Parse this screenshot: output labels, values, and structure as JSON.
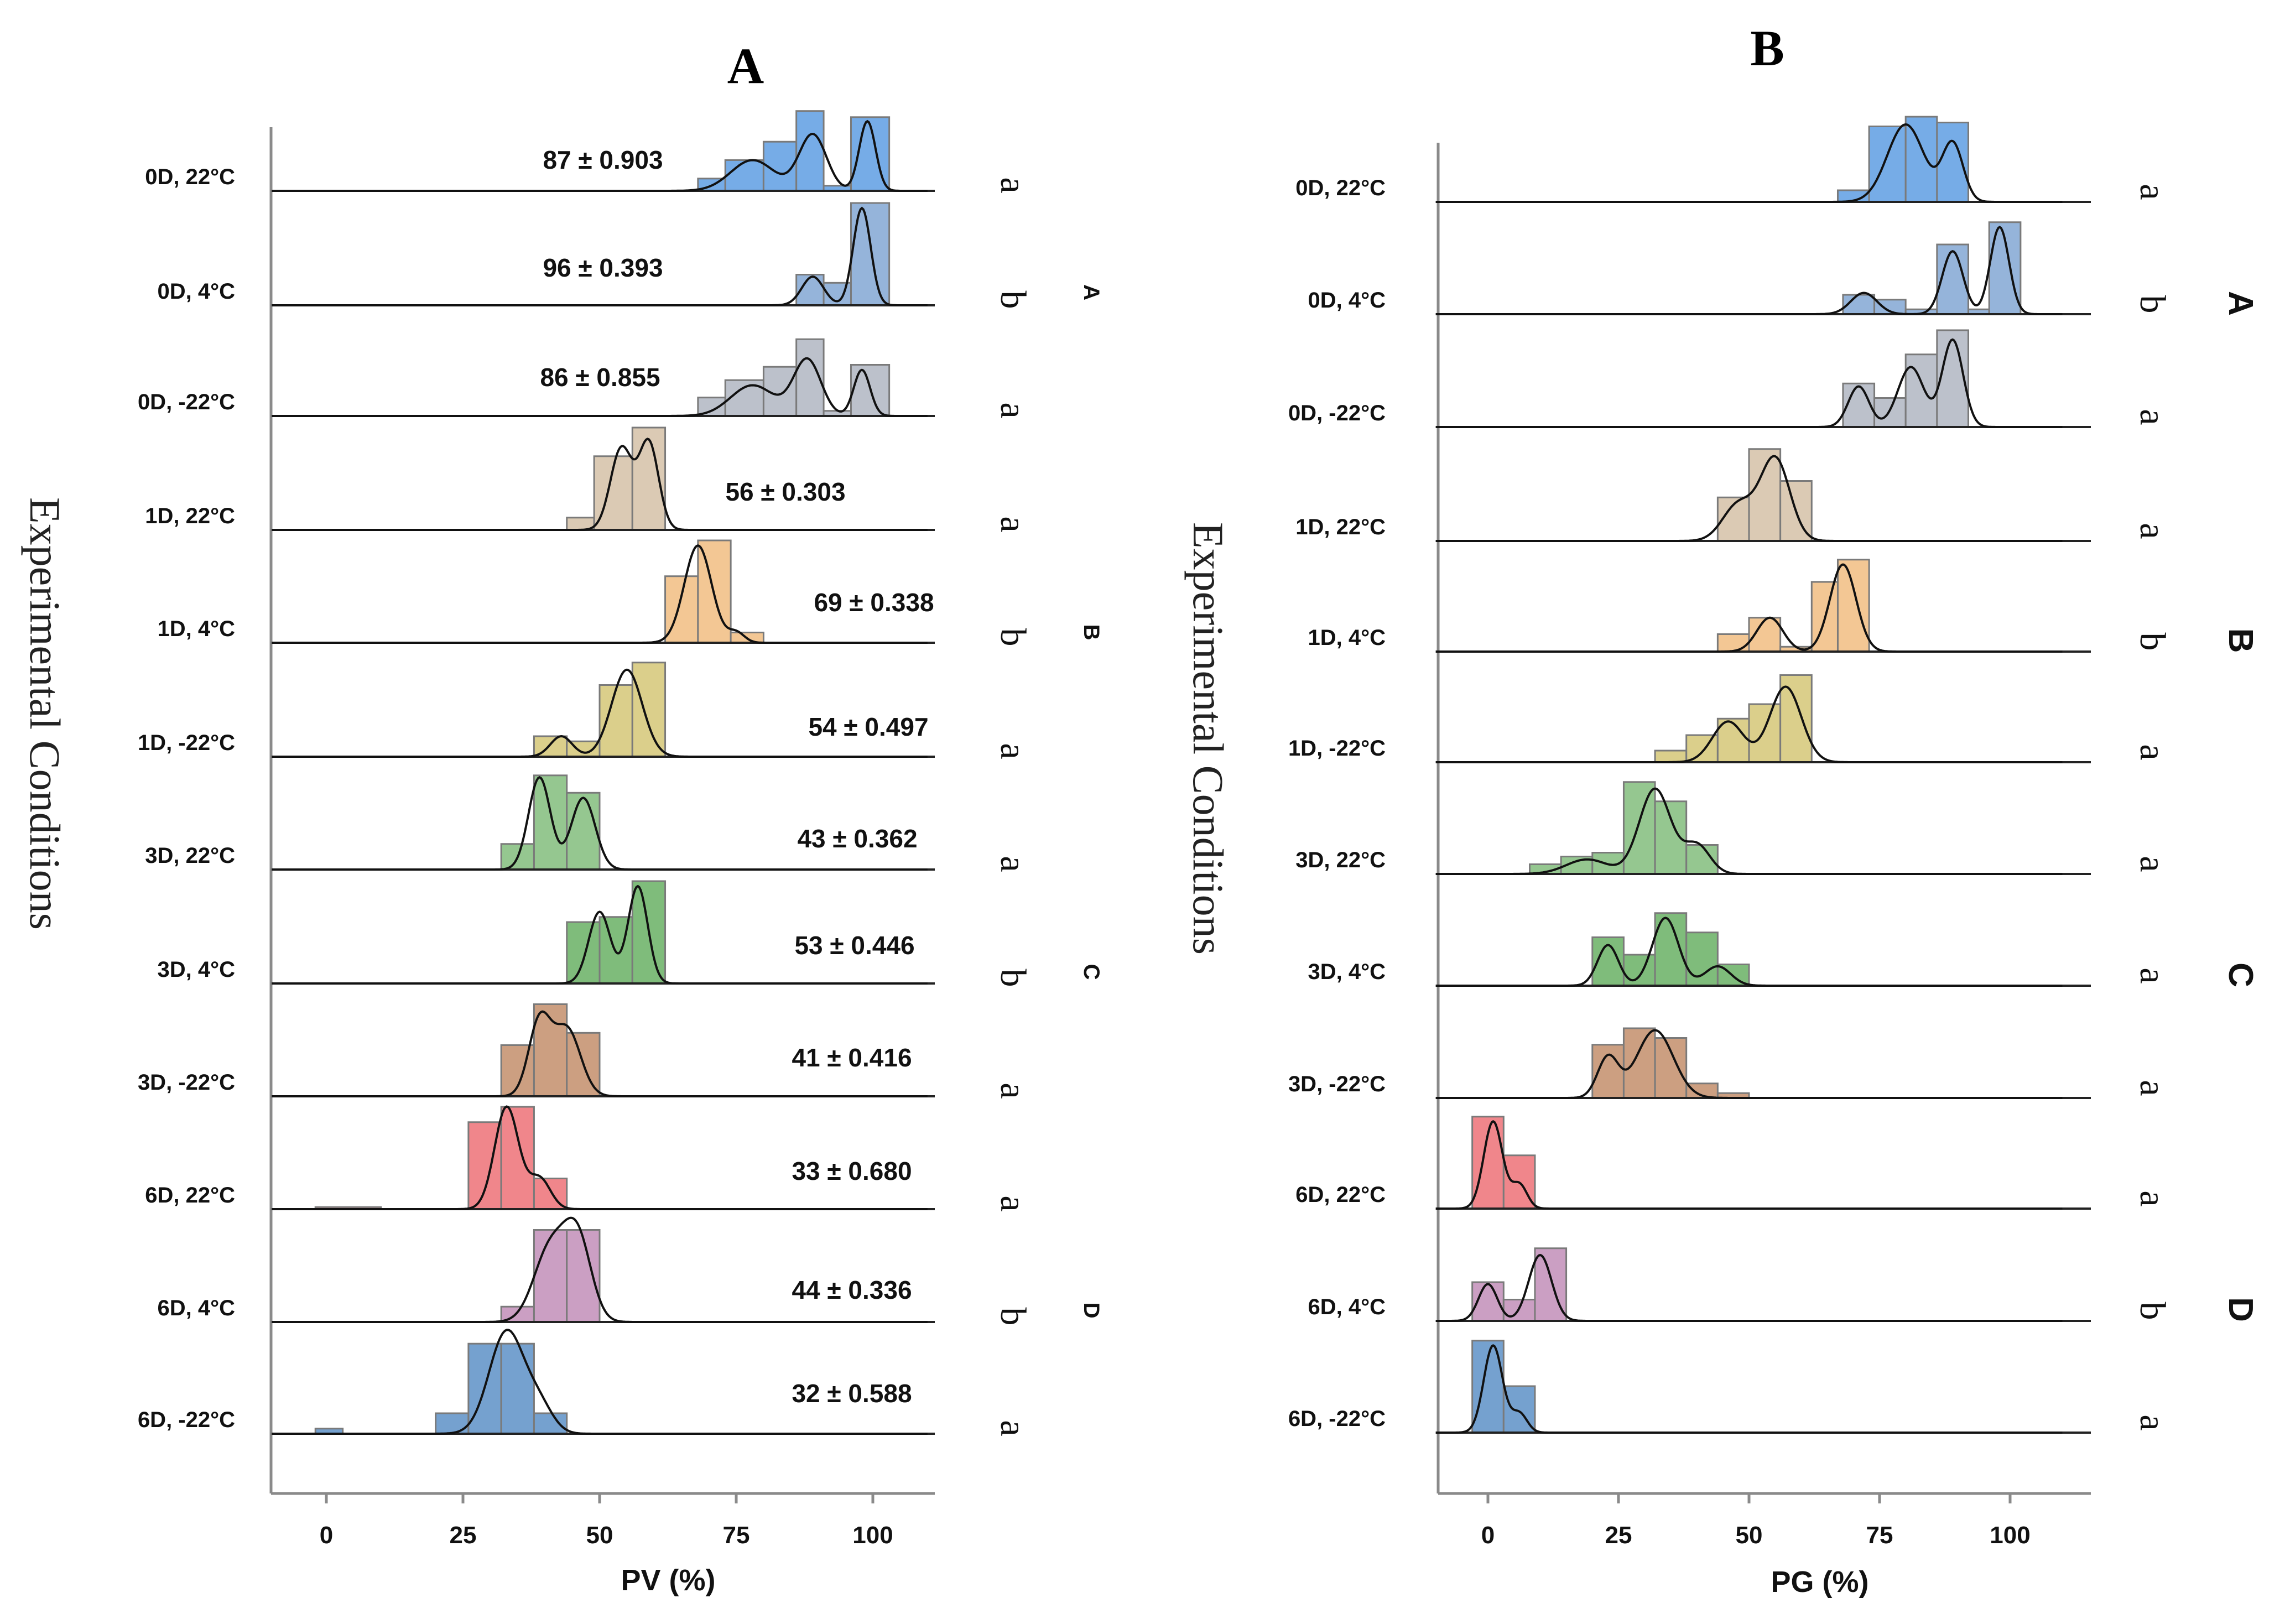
{
  "chart_data": [
    {
      "type": "histogram-ridgeline",
      "title": "A",
      "xlabel": "PV (%)",
      "ylabel": "Experimental Conditions",
      "xlim": [
        -10,
        110
      ],
      "xticks": [
        0,
        25,
        50,
        75,
        100
      ],
      "series": [
        {
          "name": "0D, 22°C",
          "color": "#6fa8e6",
          "stat": "87 ± 0.903",
          "letter": "a",
          "bins": [
            [
              68,
              73,
              0.12
            ],
            [
              73,
              80,
              0.3
            ],
            [
              80,
              86,
              0.48
            ],
            [
              86,
              91,
              0.78
            ],
            [
              91,
              96,
              0.05
            ],
            [
              96,
              103,
              0.72
            ]
          ],
          "peaks": [
            [
              78,
              0.3,
              4
            ],
            [
              89,
              0.55,
              2.5
            ],
            [
              99,
              0.68,
              1.5
            ]
          ]
        },
        {
          "name": "0D, 4°C",
          "color": "#8fb0d8",
          "stat": "96 ± 0.393",
          "letter": "b",
          "bins": [
            [
              86,
              91,
              0.3
            ],
            [
              91,
              96,
              0.22
            ],
            [
              96,
              103,
              1.0
            ]
          ],
          "peaks": [
            [
              89,
              0.28,
              2
            ],
            [
              98,
              0.95,
              1.6
            ]
          ]
        },
        {
          "name": "0D, -22°C",
          "color": "#b8bec8",
          "stat": "86 ± 0.855",
          "letter": "a",
          "bins": [
            [
              68,
              73,
              0.18
            ],
            [
              73,
              80,
              0.35
            ],
            [
              80,
              86,
              0.48
            ],
            [
              86,
              91,
              0.75
            ],
            [
              91,
              96,
              0.05
            ],
            [
              96,
              103,
              0.5
            ]
          ],
          "peaks": [
            [
              78,
              0.3,
              4
            ],
            [
              88,
              0.55,
              2.5
            ],
            [
              98,
              0.45,
              1.5
            ]
          ]
        },
        {
          "name": "1D, 22°C",
          "color": "#d9c7b0",
          "stat": "56 ± 0.303",
          "letter": "a",
          "bins": [
            [
              44,
              49,
              0.12
            ],
            [
              49,
              56,
              0.72
            ],
            [
              56,
              62,
              1.0
            ]
          ],
          "peaks": [
            [
              54,
              0.8,
              2
            ],
            [
              59,
              0.85,
              1.8
            ]
          ]
        },
        {
          "name": "1D, 4°C",
          "color": "#f2c48e",
          "stat": "69 ± 0.338",
          "letter": "b",
          "bins": [
            [
              62,
              68,
              0.65
            ],
            [
              68,
              74,
              1.0
            ],
            [
              74,
              80,
              0.1
            ]
          ],
          "peaks": [
            [
              68,
              0.95,
              2.5
            ],
            [
              75,
              0.1,
              1.5
            ]
          ]
        },
        {
          "name": "1D, -22°C",
          "color": "#d9cc85",
          "stat": "54 ± 0.497",
          "letter": "a",
          "bins": [
            [
              38,
              44,
              0.2
            ],
            [
              44,
              50,
              0.15
            ],
            [
              50,
              56,
              0.7
            ],
            [
              56,
              62,
              0.92
            ]
          ],
          "peaks": [
            [
              43,
              0.2,
              2
            ],
            [
              55,
              0.85,
              2.8
            ]
          ]
        },
        {
          "name": "3D, 22°C",
          "color": "#8fc48a",
          "stat": "43 ± 0.362",
          "letter": "a",
          "bins": [
            [
              32,
              38,
              0.25
            ],
            [
              38,
              44,
              0.92
            ],
            [
              44,
              50,
              0.75
            ]
          ],
          "peaks": [
            [
              39,
              0.9,
              2
            ],
            [
              47,
              0.7,
              2.2
            ]
          ]
        },
        {
          "name": "3D, 4°C",
          "color": "#78b874",
          "stat": "53 ± 0.446",
          "letter": "b",
          "bins": [
            [
              44,
              50,
              0.6
            ],
            [
              50,
              56,
              0.65
            ],
            [
              56,
              62,
              1.0
            ]
          ],
          "peaks": [
            [
              50,
              0.7,
              2
            ],
            [
              57,
              0.95,
              1.8
            ]
          ]
        },
        {
          "name": "3D, -22°C",
          "color": "#c99a7a",
          "stat": "41 ± 0.416",
          "letter": "a",
          "bins": [
            [
              32,
              38,
              0.5
            ],
            [
              38,
              44,
              0.9
            ],
            [
              44,
              50,
              0.62
            ]
          ],
          "peaks": [
            [
              39,
              0.72,
              2
            ],
            [
              44,
              0.66,
              2.5
            ]
          ]
        },
        {
          "name": "6D, 22°C",
          "color": "#ef7f85",
          "stat": "33 ± 0.680",
          "letter": "a",
          "bins": [
            [
              -2,
              10,
              0.02
            ],
            [
              26,
              32,
              0.85
            ],
            [
              32,
              38,
              1.0
            ],
            [
              38,
              44,
              0.3
            ]
          ],
          "peaks": [
            [
              33,
              1.0,
              2.2
            ],
            [
              39,
              0.3,
              2
            ]
          ]
        },
        {
          "name": "6D, 4°C",
          "color": "#c89ac0",
          "stat": "44 ± 0.336",
          "letter": "b",
          "bins": [
            [
              32,
              38,
              0.15
            ],
            [
              38,
              44,
              0.9
            ],
            [
              44,
              50,
              0.9
            ]
          ],
          "peaks": [
            [
              41,
              0.72,
              3
            ],
            [
              46,
              0.78,
              2.5
            ]
          ]
        },
        {
          "name": "6D, -22°C",
          "color": "#6e9ccc",
          "stat": "32 ± 0.588",
          "letter": "a",
          "bins": [
            [
              -2,
              3,
              0.05
            ],
            [
              20,
              26,
              0.2
            ],
            [
              26,
              32,
              0.88
            ],
            [
              32,
              38,
              0.88
            ],
            [
              38,
              44,
              0.2
            ]
          ],
          "peaks": [
            [
              33,
              1.0,
              3.2
            ],
            [
              39,
              0.25,
              2.5
            ]
          ]
        }
      ],
      "groups": [
        {
          "label": "A",
          "rows": [
            0,
            2
          ]
        },
        {
          "label": "B",
          "rows": [
            3,
            5
          ]
        },
        {
          "label": "C",
          "rows": [
            6,
            8
          ]
        },
        {
          "label": "D",
          "rows": [
            9,
            11
          ]
        }
      ]
    },
    {
      "type": "histogram-ridgeline",
      "title": "B",
      "xlabel": "PG (%)",
      "ylabel": "Experimental Conditions",
      "xlim": [
        -10,
        110
      ],
      "xticks": [
        0,
        25,
        50,
        75,
        100
      ],
      "series": [
        {
          "name": "0D, 22°C",
          "color": "#6fa8e6",
          "letter": "a",
          "bins": [
            [
              67,
              73,
              0.12
            ],
            [
              73,
              80,
              0.78
            ],
            [
              80,
              86,
              0.88
            ],
            [
              86,
              92,
              0.82
            ]
          ],
          "peaks": [
            [
              80,
              0.8,
              3.5
            ],
            [
              89,
              0.6,
              2
            ]
          ]
        },
        {
          "name": "0D, 4°C",
          "color": "#8fb0d8",
          "letter": "b",
          "bins": [
            [
              68,
              74,
              0.2
            ],
            [
              74,
              80,
              0.15
            ],
            [
              80,
              86,
              0.05
            ],
            [
              86,
              92,
              0.72
            ],
            [
              92,
              96,
              0.05
            ],
            [
              96,
              102,
              0.95
            ]
          ],
          "peaks": [
            [
              72,
              0.22,
              2.5
            ],
            [
              89,
              0.65,
              2
            ],
            [
              98,
              0.9,
              1.8
            ]
          ]
        },
        {
          "name": "0D, -22°C",
          "color": "#b8bec8",
          "letter": "a",
          "bins": [
            [
              68,
              74,
              0.45
            ],
            [
              74,
              80,
              0.3
            ],
            [
              80,
              86,
              0.75
            ],
            [
              86,
              92,
              1.0
            ]
          ],
          "peaks": [
            [
              71,
              0.42,
              2
            ],
            [
              81,
              0.62,
              2.5
            ],
            [
              89,
              0.9,
              2
            ]
          ]
        },
        {
          "name": "1D, 22°C",
          "color": "#d9c7b0",
          "letter": "a",
          "bins": [
            [
              44,
              50,
              0.45
            ],
            [
              50,
              56,
              0.95
            ],
            [
              56,
              62,
              0.62
            ]
          ],
          "peaks": [
            [
              48,
              0.38,
              3
            ],
            [
              55,
              0.85,
              2.8
            ]
          ]
        },
        {
          "name": "1D, 4°C",
          "color": "#f2c48e",
          "letter": "b",
          "bins": [
            [
              44,
              50,
              0.18
            ],
            [
              50,
              56,
              0.35
            ],
            [
              56,
              62,
              0.05
            ],
            [
              62,
              67,
              0.72
            ],
            [
              67,
              73,
              0.95
            ]
          ],
          "peaks": [
            [
              54,
              0.35,
              2.5
            ],
            [
              68,
              0.9,
              2.5
            ]
          ]
        },
        {
          "name": "1D, -22°C",
          "color": "#d9cc85",
          "letter": "a",
          "bins": [
            [
              32,
              38,
              0.12
            ],
            [
              38,
              44,
              0.28
            ],
            [
              44,
              50,
              0.45
            ],
            [
              50,
              56,
              0.6
            ],
            [
              56,
              62,
              0.9
            ]
          ],
          "peaks": [
            [
              46,
              0.42,
              3
            ],
            [
              57,
              0.78,
              3
            ]
          ]
        },
        {
          "name": "3D, 22°C",
          "color": "#8fc48a",
          "letter": "a",
          "bins": [
            [
              8,
              14,
              0.1
            ],
            [
              14,
              20,
              0.18
            ],
            [
              20,
              26,
              0.22
            ],
            [
              26,
              32,
              0.95
            ],
            [
              32,
              38,
              0.75
            ],
            [
              38,
              44,
              0.3
            ]
          ],
          "peaks": [
            [
              19,
              0.15,
              4
            ],
            [
              32,
              0.88,
              3
            ],
            [
              40,
              0.3,
              2.5
            ]
          ]
        },
        {
          "name": "3D, 4°C",
          "color": "#78b874",
          "letter": "a",
          "bins": [
            [
              20,
              26,
              0.5
            ],
            [
              26,
              32,
              0.32
            ],
            [
              32,
              38,
              0.75
            ],
            [
              38,
              44,
              0.55
            ],
            [
              44,
              50,
              0.22
            ]
          ],
          "peaks": [
            [
              23,
              0.42,
              2
            ],
            [
              34,
              0.7,
              2.5
            ],
            [
              44,
              0.2,
              2.5
            ]
          ]
        },
        {
          "name": "3D, -22°C",
          "color": "#c99a7a",
          "letter": "a",
          "bins": [
            [
              20,
              26,
              0.55
            ],
            [
              26,
              32,
              0.72
            ],
            [
              32,
              38,
              0.62
            ],
            [
              38,
              44,
              0.15
            ],
            [
              44,
              50,
              0.05
            ]
          ],
          "peaks": [
            [
              23,
              0.42,
              2
            ],
            [
              32,
              0.7,
              3.5
            ]
          ]
        },
        {
          "name": "6D, 22°C",
          "color": "#ef7f85",
          "letter": "a",
          "bins": [
            [
              -3,
              3,
              0.95
            ],
            [
              3,
              9,
              0.55
            ]
          ],
          "peaks": [
            [
              1,
              0.9,
              1.8
            ],
            [
              6,
              0.25,
              1.5
            ]
          ]
        },
        {
          "name": "6D, 4°C",
          "color": "#c89ac0",
          "letter": "b",
          "bins": [
            [
              -3,
              3,
              0.4
            ],
            [
              3,
              9,
              0.22
            ],
            [
              9,
              15,
              0.75
            ]
          ],
          "peaks": [
            [
              0,
              0.38,
              1.8
            ],
            [
              10,
              0.68,
              2.2
            ]
          ]
        },
        {
          "name": "6D, -22°C",
          "color": "#6e9ccc",
          "letter": "a",
          "bins": [
            [
              -3,
              3,
              0.95
            ],
            [
              3,
              9,
              0.48
            ]
          ],
          "peaks": [
            [
              1,
              0.9,
              1.8
            ],
            [
              6,
              0.2,
              1.5
            ]
          ]
        }
      ],
      "groups": [
        {
          "label": "A",
          "rows": [
            0,
            2
          ]
        },
        {
          "label": "B",
          "rows": [
            3,
            5
          ]
        },
        {
          "label": "C",
          "rows": [
            6,
            8
          ]
        },
        {
          "label": "D",
          "rows": [
            9,
            11
          ]
        }
      ]
    }
  ]
}
